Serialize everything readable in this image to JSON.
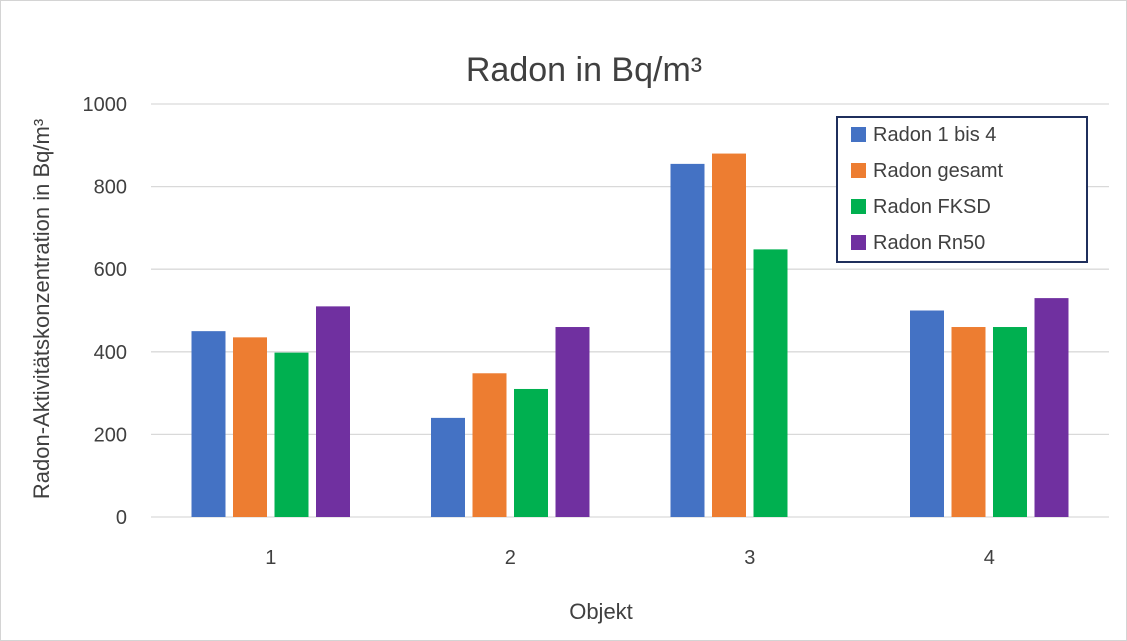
{
  "chart_data": {
    "type": "bar",
    "title": "Radon in Bq/m³",
    "xlabel": "Objekt",
    "ylabel": "Radon-Aktivitätskonzentration in Bq/m³",
    "categories": [
      "1",
      "2",
      "3",
      "4"
    ],
    "series": [
      {
        "name": "Radon 1 bis 4",
        "color": "#4472C4",
        "values": [
          450,
          240,
          855,
          500
        ]
      },
      {
        "name": "Radon gesamt",
        "color": "#ED7D31",
        "values": [
          435,
          348,
          880,
          460
        ]
      },
      {
        "name": "Radon FKSD",
        "color": "#00B050",
        "values": [
          398,
          310,
          648,
          460
        ]
      },
      {
        "name": "Radon Rn50",
        "color": "#7030A0",
        "values": [
          510,
          460,
          null,
          530
        ]
      }
    ],
    "ylim": [
      0,
      1000
    ],
    "yticks": [
      0,
      200,
      400,
      600,
      800,
      1000
    ],
    "grid": true,
    "legend": "top-right"
  }
}
